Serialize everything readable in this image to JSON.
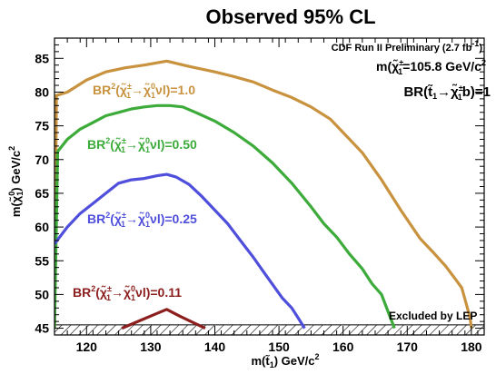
{
  "chart_data": {
    "type": "line",
    "title": "Observed 95% CL",
    "xlabel": "m(t̃₁) GeV/c²",
    "ylabel": "m(χ̃₁⁰) GeV/c²",
    "xlim": [
      115,
      182
    ],
    "ylim": [
      44,
      88
    ],
    "x_ticks": [
      "120",
      "130",
      "140",
      "150",
      "160",
      "170",
      "180"
    ],
    "y_ticks": [
      "45",
      "50",
      "55",
      "60",
      "65",
      "70",
      "75",
      "80",
      "85"
    ],
    "annotations": {
      "experiment": "CDF Run II Preliminary (2.7 fb",
      "experiment_sup": "-1",
      "experiment_end": ")",
      "chargino_mass": "=105.8 GeV/c",
      "branching": "BR(t̃₁→χ̃₁±b)=1",
      "lep": "Excluded by LEP"
    },
    "lep_excluded_below": 45.5,
    "series": [
      {
        "name": "BR²(χ̃₁±→χ̃₁⁰νl)=1.0",
        "label_value": "=1.0",
        "color": "#c8923e",
        "x": [
          115.0,
          115.3,
          117.0,
          120.0,
          123.0,
          126.0,
          129.0,
          132.5,
          136.0,
          140.0,
          143.0,
          146.0,
          149.0,
          152.0,
          155.0,
          158.0,
          160.0,
          163.0,
          166.0,
          169.0,
          172.0,
          174.0,
          176.0,
          177.5,
          178.5,
          179.3,
          179.8,
          180.0
        ],
        "y": [
          45.0,
          79.5,
          80.0,
          81.8,
          83.0,
          83.6,
          84.0,
          84.6,
          83.8,
          83.0,
          82.3,
          81.5,
          80.3,
          79.2,
          77.8,
          76.0,
          74.0,
          71.0,
          67.0,
          62.5,
          58.3,
          56.3,
          54.2,
          52.3,
          51.0,
          48.3,
          46.5,
          45.0
        ]
      },
      {
        "name": "BR²(χ̃₁±→χ̃₁⁰νl)=0.50",
        "label_value": "=0.50",
        "color": "#3cab3a",
        "x": [
          115.0,
          115.5,
          117.0,
          119.0,
          121.0,
          123.0,
          125.0,
          127.0,
          129.0,
          131.0,
          133.0,
          135.0,
          137.0,
          140.0,
          143.0,
          146.0,
          149.0,
          152.0,
          155.0,
          157.0,
          159.0,
          161.0,
          163.0,
          164.5,
          166.0,
          167.0,
          168.0
        ],
        "y": [
          45.0,
          71.2,
          73.0,
          74.5,
          75.5,
          76.5,
          77.0,
          77.5,
          77.8,
          78.0,
          78.0,
          77.8,
          77.0,
          75.7,
          74.0,
          72.0,
          69.5,
          66.5,
          63.0,
          60.5,
          58.5,
          56.0,
          53.8,
          51.6,
          50.0,
          47.5,
          45.0
        ]
      },
      {
        "name": "BR²(χ̃₁±→χ̃₁⁰νl)=0.25",
        "label_value": "=0.25",
        "color": "#4f4fdc",
        "x": [
          115.0,
          117.0,
          119.0,
          121.0,
          123.0,
          125.0,
          127.0,
          129.0,
          131.0,
          132.5,
          134.0,
          136.0,
          138.0,
          140.0,
          142.0,
          144.0,
          146.0,
          147.5,
          149.0,
          150.5,
          152.0,
          153.0,
          154.0
        ],
        "y": [
          57.5,
          60.0,
          62.0,
          63.5,
          65.0,
          66.5,
          67.0,
          67.2,
          67.6,
          67.8,
          67.4,
          66.3,
          64.5,
          62.5,
          60.5,
          58.0,
          55.5,
          53.5,
          51.5,
          49.5,
          48.0,
          46.5,
          45.0
        ]
      },
      {
        "name": "BR²(χ̃₁±→χ̃₁⁰νl)=0.11",
        "label_value": "=0.11",
        "color": "#8c1e1e",
        "x": [
          125.5,
          128.0,
          130.5,
          132.5,
          134.5,
          136.5,
          138.5
        ],
        "y": [
          45.0,
          46.0,
          47.0,
          47.8,
          46.8,
          45.9,
          45.0
        ]
      }
    ]
  }
}
